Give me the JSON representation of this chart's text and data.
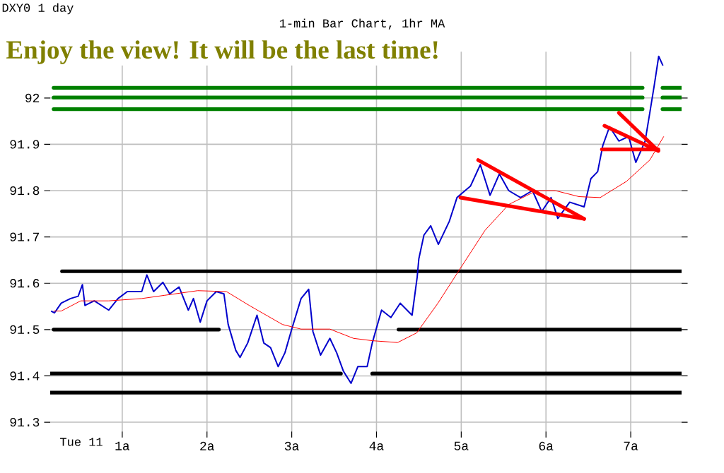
{
  "chart_data": {
    "type": "line",
    "title": "1-min Bar Chart, 1hr MA",
    "subtitle": "Enjoy the view! It will be the last time!",
    "annotations": [
      "DXY0 1 day",
      "Tue 11"
    ],
    "xlim": [
      0.15,
      7.6
    ],
    "ylim": [
      91.28,
      92.1
    ],
    "xticks": [
      {
        "value": 1,
        "label": "1a"
      },
      {
        "value": 2,
        "label": "2a"
      },
      {
        "value": 3,
        "label": "3a"
      },
      {
        "value": 4,
        "label": "4a"
      },
      {
        "value": 5,
        "label": "5a"
      },
      {
        "value": 6,
        "label": "6a"
      },
      {
        "value": 7,
        "label": "7a"
      }
    ],
    "yticks": [
      91.3,
      91.4,
      91.5,
      91.6,
      91.7,
      91.8,
      91.9,
      92
    ],
    "grid": true,
    "series": [
      {
        "color": "#000000",
        "x": [
          0.29,
          7.6
        ],
        "values": [
          91.626,
          91.626
        ]
      },
      {
        "color": "#000000",
        "x": [
          0.19,
          2.14
        ],
        "values": [
          91.5,
          91.5
        ]
      },
      {
        "color": "#000000",
        "x": [
          4.26,
          7.6
        ],
        "values": [
          91.5,
          91.5
        ]
      },
      {
        "color": "#000000",
        "x": [
          0.15,
          3.58
        ],
        "values": [
          91.405,
          91.405
        ]
      },
      {
        "color": "#000000",
        "x": [
          3.95,
          7.6
        ],
        "values": [
          91.405,
          91.405
        ]
      },
      {
        "color": "#000000",
        "x": [
          0.15,
          7.6
        ],
        "values": [
          91.364,
          91.364
        ]
      },
      {
        "color": "#008000",
        "x": [
          0.19,
          7.14
        ],
        "values": [
          92.022,
          92.022
        ]
      },
      {
        "color": "#008000",
        "x": [
          0.19,
          7.14
        ],
        "values": [
          92.001,
          92.001
        ]
      },
      {
        "color": "#008000",
        "x": [
          0.19,
          7.14
        ],
        "values": [
          91.976,
          91.976
        ]
      },
      {
        "color": "#008000",
        "x": [
          7.375,
          7.6
        ],
        "values": [
          92.022,
          92.022
        ]
      },
      {
        "color": "#008000",
        "x": [
          7.375,
          7.6
        ],
        "values": [
          92.001,
          92.001
        ]
      },
      {
        "color": "#008000",
        "x": [
          7.375,
          7.6
        ],
        "values": [
          91.976,
          91.976
        ]
      },
      {
        "color": "#0000cc",
        "x": [
          0.16,
          0.2,
          0.28,
          0.39,
          0.48,
          0.53,
          0.56,
          0.67,
          0.84,
          0.95,
          1.06,
          1.23,
          1.29,
          1.37,
          1.48,
          1.56,
          1.67,
          1.78,
          1.84,
          1.92,
          2.0,
          2.11,
          2.2,
          2.25,
          2.34,
          2.39,
          2.48,
          2.59,
          2.67,
          2.75,
          2.84,
          2.92,
          3.0,
          3.11,
          3.2,
          3.25,
          3.34,
          3.45,
          3.53,
          3.61,
          3.7,
          3.78,
          3.89,
          3.95,
          4.06,
          4.17,
          4.28,
          4.42,
          4.48,
          4.5,
          4.56,
          4.64,
          4.73,
          4.86,
          4.95,
          5.11,
          5.225,
          5.34,
          5.45,
          5.56,
          5.7,
          5.84,
          5.95,
          6.06,
          6.14,
          6.28,
          6.45,
          6.53,
          6.61,
          6.67,
          6.75,
          6.86,
          6.975,
          7.06,
          7.17,
          7.225,
          7.28,
          7.33,
          7.38
        ],
        "values": [
          91.54,
          91.536,
          91.557,
          91.567,
          91.572,
          91.597,
          91.552,
          91.562,
          91.542,
          91.567,
          91.582,
          91.582,
          91.618,
          91.582,
          91.602,
          91.577,
          91.592,
          91.542,
          91.567,
          91.516,
          91.562,
          91.582,
          91.577,
          91.511,
          91.455,
          91.44,
          91.471,
          91.531,
          91.471,
          91.461,
          91.42,
          91.45,
          91.501,
          91.567,
          91.587,
          91.496,
          91.445,
          91.481,
          91.45,
          91.41,
          91.384,
          91.42,
          91.42,
          91.471,
          91.542,
          91.526,
          91.557,
          91.531,
          91.613,
          91.653,
          91.704,
          91.724,
          91.684,
          91.734,
          91.785,
          91.81,
          91.856,
          91.79,
          91.836,
          91.8,
          91.785,
          91.8,
          91.755,
          91.785,
          91.74,
          91.775,
          91.765,
          91.826,
          91.841,
          91.897,
          91.938,
          91.907,
          91.917,
          91.861,
          91.907,
          91.968,
          92.03,
          92.09,
          92.07
        ]
      },
      {
        "color": "#ff0000",
        "x": [
          0.19,
          0.28,
          0.51,
          0.84,
          1.23,
          1.5,
          1.89,
          2.23,
          2.5,
          2.89,
          3.11,
          3.45,
          3.73,
          3.95,
          4.25,
          4.475,
          4.725,
          4.975,
          5.28,
          5.56,
          5.89,
          6.11,
          6.39,
          6.64,
          6.95,
          7.225,
          7.39
        ],
        "values": [
          91.54,
          91.54,
          91.562,
          91.562,
          91.567,
          91.574,
          91.584,
          91.582,
          91.552,
          91.511,
          91.501,
          91.501,
          91.481,
          91.476,
          91.472,
          91.493,
          91.557,
          91.628,
          91.714,
          91.77,
          91.8,
          91.8,
          91.787,
          91.785,
          91.82,
          91.866,
          91.917
        ]
      },
      {
        "color": "#ff0000",
        "x": [
          5.2,
          6.45
        ],
        "values": [
          91.866,
          91.739
        ]
      },
      {
        "color": "#ff0000",
        "x": [
          4.99,
          6.45
        ],
        "values": [
          91.785,
          91.739
        ]
      },
      {
        "color": "#ff0000",
        "x": [
          6.69,
          7.325
        ],
        "values": [
          91.94,
          91.886
        ]
      },
      {
        "color": "#ff0000",
        "x": [
          6.86,
          7.325
        ],
        "values": [
          91.968,
          91.886
        ]
      },
      {
        "color": "#ff0000",
        "x": [
          6.66,
          7.325
        ],
        "values": [
          91.889,
          91.889
        ]
      }
    ]
  }
}
